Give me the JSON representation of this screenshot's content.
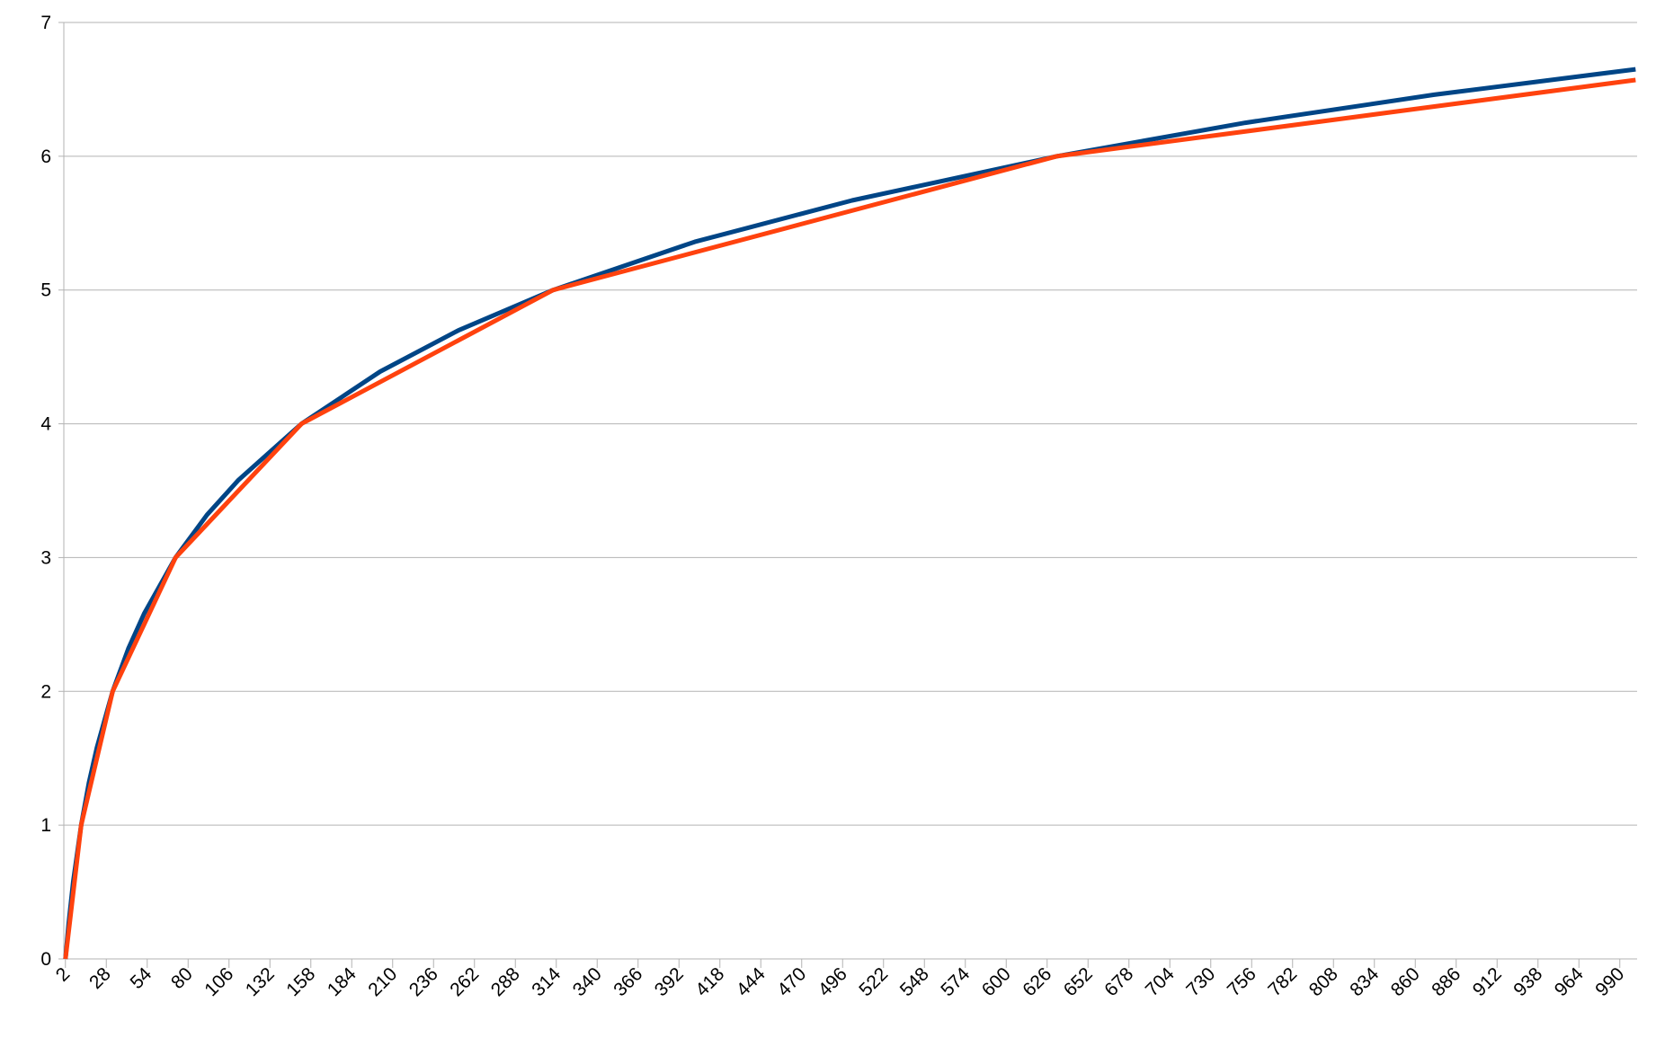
{
  "chart_data": {
    "type": "line",
    "series": [
      {
        "color": "#004586",
        "x": [
          2,
          4,
          7,
          12,
          17,
          22,
          32,
          42,
          52,
          72,
          92,
          112,
          152,
          202,
          252,
          312,
          402,
          502,
          632,
          752,
          872,
          1000
        ],
        "values": [
          0,
          0.26,
          0.58,
          1,
          1.32,
          1.58,
          2,
          2.32,
          2.58,
          3,
          3.32,
          3.58,
          4,
          4.39,
          4.7,
          5,
          5.36,
          5.67,
          6,
          6.25,
          6.46,
          6.65
        ]
      },
      {
        "color": "#ff420e",
        "x": [
          2,
          12,
          32,
          72,
          152,
          312,
          632,
          1000
        ],
        "values": [
          0,
          1,
          2,
          3,
          4,
          5,
          6,
          6.57
        ]
      }
    ],
    "xlim": [
      1,
      1001
    ],
    "xticks": [
      2,
      28,
      54,
      80,
      106,
      132,
      158,
      184,
      210,
      236,
      262,
      288,
      314,
      340,
      366,
      392,
      418,
      444,
      470,
      496,
      522,
      548,
      574,
      600,
      626,
      652,
      678,
      704,
      730,
      756,
      782,
      808,
      834,
      860,
      886,
      912,
      938,
      964,
      990
    ],
    "ylim": [
      0,
      7
    ],
    "yticks": [
      0,
      1,
      2,
      3,
      4,
      5,
      6,
      7
    ],
    "grid": true
  }
}
